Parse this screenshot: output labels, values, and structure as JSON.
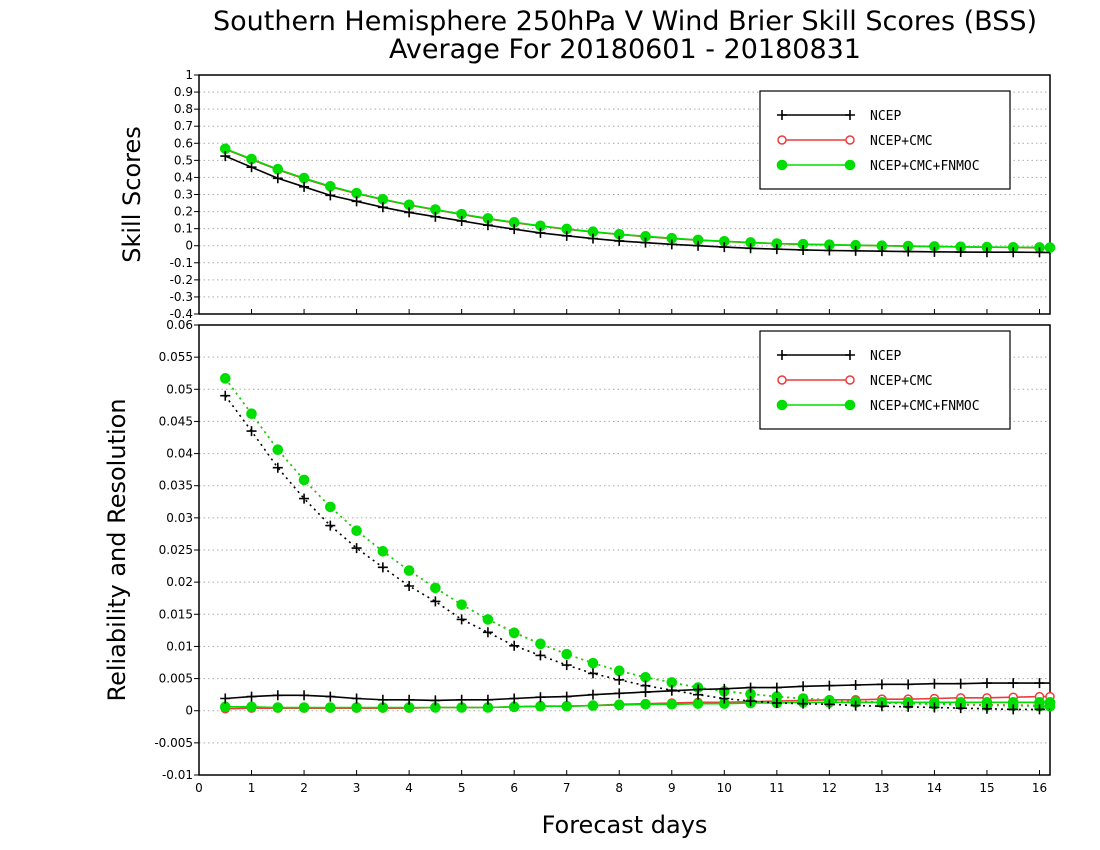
{
  "title_line1": "Southern Hemisphere 250hPa V Wind Brier Skill Scores (BSS)",
  "title_line2": "Average For 20180601 - 20180831",
  "colors": {
    "ncep": "#000000",
    "cmc": "#ee3b3b",
    "fnmoc": "#00dd00",
    "grid": "#aaaaaa"
  },
  "chart_data": [
    {
      "type": "line",
      "ylabel": "Skill Scores",
      "xlabel": "",
      "xlim": [
        0,
        16.2
      ],
      "ylim": [
        -0.4,
        1
      ],
      "yticks": [
        "-0.4",
        "-0.3",
        "-0.2",
        "-0.1",
        "0",
        "0.1",
        "0.2",
        "0.3",
        "0.4",
        "0.5",
        "0.6",
        "0.7",
        "0.8",
        "0.9",
        "1"
      ],
      "grid": "horizontal dotted",
      "legend_position": "top-right",
      "x": [
        0.5,
        1,
        1.5,
        2,
        2.5,
        3,
        3.5,
        4,
        4.5,
        5,
        5.5,
        6,
        6.5,
        7,
        7.5,
        8,
        8.5,
        9,
        9.5,
        10,
        10.5,
        11,
        11.5,
        12,
        12.5,
        13,
        13.5,
        14,
        14.5,
        15,
        15.5,
        16,
        16.2
      ],
      "series": [
        {
          "name": "NCEP",
          "marker": "plus",
          "line": "solid",
          "values": [
            0.525,
            0.46,
            0.395,
            0.345,
            0.295,
            0.26,
            0.225,
            0.195,
            0.17,
            0.145,
            0.12,
            0.097,
            0.075,
            0.058,
            0.042,
            0.028,
            0.018,
            0.008,
            0.0,
            -0.008,
            -0.015,
            -0.02,
            -0.025,
            -0.028,
            -0.03,
            -0.032,
            -0.034,
            -0.036,
            -0.037,
            -0.038,
            -0.038,
            -0.039,
            -0.04
          ]
        },
        {
          "name": "NCEP+CMC",
          "marker": "open-circle",
          "line": "solid",
          "values": [
            0.565,
            0.505,
            0.445,
            0.392,
            0.345,
            0.305,
            0.27,
            0.238,
            0.21,
            0.183,
            0.157,
            0.135,
            0.115,
            0.097,
            0.08,
            0.066,
            0.053,
            0.042,
            0.032,
            0.025,
            0.018,
            0.012,
            0.008,
            0.005,
            0.002,
            0.0,
            -0.003,
            -0.005,
            -0.007,
            -0.009,
            -0.01,
            -0.012,
            -0.012
          ]
        },
        {
          "name": "NCEP+CMC+FNMOC",
          "marker": "filled-circle",
          "line": "solid",
          "values": [
            0.568,
            0.508,
            0.448,
            0.396,
            0.348,
            0.308,
            0.272,
            0.24,
            0.212,
            0.185,
            0.16,
            0.137,
            0.117,
            0.098,
            0.082,
            0.067,
            0.055,
            0.044,
            0.034,
            0.026,
            0.019,
            0.013,
            0.009,
            0.006,
            0.003,
            0.0,
            -0.002,
            -0.004,
            -0.006,
            -0.008,
            -0.009,
            -0.01,
            -0.011
          ]
        }
      ]
    },
    {
      "type": "line",
      "ylabel": "Reliability and Resolution",
      "xlabel": "Forecast days",
      "xlim": [
        0,
        16.2
      ],
      "ylim": [
        -0.01,
        0.06
      ],
      "xticks": [
        "0",
        "1",
        "2",
        "3",
        "4",
        "5",
        "6",
        "7",
        "8",
        "9",
        "10",
        "11",
        "12",
        "13",
        "14",
        "15",
        "16"
      ],
      "yticks": [
        "-0.01",
        "-0.005",
        "0",
        "0.005",
        "0.01",
        "0.015",
        "0.02",
        "0.025",
        "0.03",
        "0.035",
        "0.04",
        "0.045",
        "0.05",
        "0.055",
        "0.06"
      ],
      "grid": "horizontal dotted",
      "legend_position": "top-right",
      "x": [
        0.5,
        1,
        1.5,
        2,
        2.5,
        3,
        3.5,
        4,
        4.5,
        5,
        5.5,
        6,
        6.5,
        7,
        7.5,
        8,
        8.5,
        9,
        9.5,
        10,
        10.5,
        11,
        11.5,
        12,
        12.5,
        13,
        13.5,
        14,
        14.5,
        15,
        15.5,
        16,
        16.2
      ],
      "series": [
        {
          "name": "NCEP",
          "component": "reliability",
          "marker": "plus",
          "line": "solid",
          "values": [
            0.0019,
            0.0022,
            0.0024,
            0.0024,
            0.0022,
            0.0019,
            0.0017,
            0.0017,
            0.0016,
            0.0017,
            0.0017,
            0.0019,
            0.0021,
            0.0022,
            0.0025,
            0.0027,
            0.0029,
            0.0031,
            0.0033,
            0.0034,
            0.0036,
            0.0036,
            0.0038,
            0.0039,
            0.004,
            0.0041,
            0.0041,
            0.0042,
            0.0042,
            0.0043,
            0.0043,
            0.0043,
            0.0043
          ]
        },
        {
          "name": "NCEP",
          "component": "resolution",
          "marker": "plus",
          "line": "dotted",
          "values": [
            0.049,
            0.0435,
            0.0378,
            0.033,
            0.0288,
            0.0253,
            0.0223,
            0.0194,
            0.017,
            0.0142,
            0.0122,
            0.0101,
            0.0086,
            0.0071,
            0.0058,
            0.0048,
            0.0039,
            0.0032,
            0.0025,
            0.0019,
            0.0015,
            0.0012,
            0.0011,
            0.001,
            0.0008,
            0.0007,
            0.0006,
            0.0005,
            0.0004,
            0.0003,
            0.0002,
            0.0002,
            0.0002
          ]
        },
        {
          "name": "NCEP+CMC",
          "component": "reliability",
          "marker": "open-circle",
          "line": "solid",
          "values": [
            0.0003,
            0.0004,
            0.0004,
            0.0004,
            0.0004,
            0.0004,
            0.0004,
            0.0004,
            0.0005,
            0.0005,
            0.0005,
            0.0006,
            0.0007,
            0.0007,
            0.0008,
            0.001,
            0.0011,
            0.0012,
            0.0013,
            0.0013,
            0.0014,
            0.0015,
            0.0016,
            0.0017,
            0.0017,
            0.0018,
            0.0018,
            0.0019,
            0.002,
            0.002,
            0.0021,
            0.0022,
            0.0022
          ]
        },
        {
          "name": "NCEP+CMC",
          "component": "resolution",
          "marker": "open-circle",
          "line": "dotted",
          "values": [
            0.0517,
            0.0462,
            0.0406,
            0.0359,
            0.0317,
            0.028,
            0.0248,
            0.0218,
            0.0191,
            0.0165,
            0.0142,
            0.0122,
            0.0104,
            0.0088,
            0.0074,
            0.0062,
            0.0052,
            0.0044,
            0.0036,
            0.0031,
            0.0026,
            0.0022,
            0.0019,
            0.0017,
            0.0015,
            0.0013,
            0.0012,
            0.0011,
            0.001,
            0.0009,
            0.0009,
            0.0008,
            0.0008
          ]
        },
        {
          "name": "NCEP+CMC+FNMOC",
          "component": "reliability",
          "marker": "filled-circle",
          "line": "solid",
          "values": [
            0.0006,
            0.0006,
            0.0005,
            0.0005,
            0.0005,
            0.0005,
            0.0005,
            0.0005,
            0.0005,
            0.0005,
            0.0005,
            0.0006,
            0.0007,
            0.0007,
            0.0008,
            0.0009,
            0.001,
            0.001,
            0.0011,
            0.0011,
            0.0012,
            0.0012,
            0.0013,
            0.0013,
            0.0013,
            0.0013,
            0.0013,
            0.0013,
            0.0013,
            0.0013,
            0.0013,
            0.0013,
            0.0013
          ]
        },
        {
          "name": "NCEP+CMC+FNMOC",
          "component": "resolution",
          "marker": "filled-circle",
          "line": "dotted",
          "values": [
            0.0517,
            0.0462,
            0.0406,
            0.0359,
            0.0317,
            0.028,
            0.0248,
            0.0218,
            0.0191,
            0.0165,
            0.0142,
            0.0121,
            0.0104,
            0.0088,
            0.0074,
            0.0062,
            0.0052,
            0.0044,
            0.0036,
            0.003,
            0.0026,
            0.0022,
            0.0019,
            0.0016,
            0.0014,
            0.0012,
            0.0011,
            0.001,
            0.0009,
            0.0008,
            0.0008,
            0.0007,
            0.0007
          ]
        }
      ]
    }
  ]
}
